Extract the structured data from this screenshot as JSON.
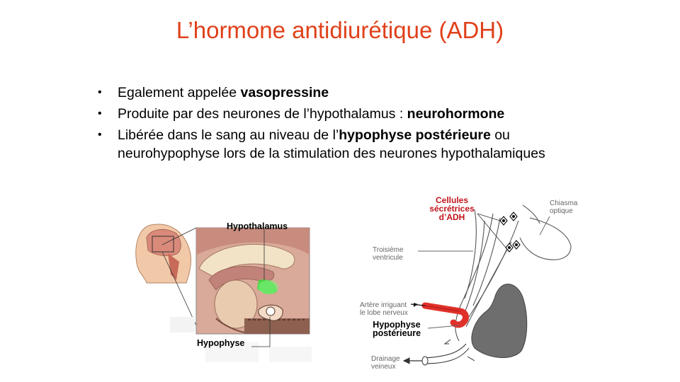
{
  "slide": {
    "title": "L’hormone antidiurétique (ADH)"
  },
  "bullets": [
    {
      "marker": "•",
      "text_before": "Egalement appelée ",
      "bold": "vasopressine",
      "text_after": ""
    },
    {
      "marker": "•",
      "text_before": "Produite par des neurones de l’hypothalamus : ",
      "bold": "neurohormone",
      "text_after": ""
    },
    {
      "marker": "•",
      "text_before": "Libérée dans le sang au niveau de l’",
      "bold": "hypophyse postérieure",
      "text_after": " ou neurohypophyse lors de la stimulation des neurones hypothalamiques"
    }
  ],
  "figure_left": {
    "label_hypothalamus": "Hypothalamus",
    "label_hypophyse": "Hypophyse"
  },
  "figure_right": {
    "label_cellules_line1": "Cellules",
    "label_cellules_line2": "sécrétrices",
    "label_cellules_line3": "d’ADH",
    "label_chiasma_line1": "Chiasma",
    "label_chiasma_line2": "optique",
    "label_troisieme_line1": "Troisième",
    "label_troisieme_line2": "ventricule",
    "label_artere_line1": "Artère irriguant",
    "label_artere_line2": "le lobe nerveux",
    "label_hypophyse_line1": "Hypophyse",
    "label_hypophyse_line2": "postérieure",
    "label_drainage_line1": "Drainage",
    "label_drainage_line2": "veineux"
  },
  "colors": {
    "title": "#e0401a",
    "red_label": "#c0141c",
    "gland": "#7a7a7a",
    "artery": "#e0302a",
    "hypothalamus_highlight": "#3fdc3f"
  }
}
